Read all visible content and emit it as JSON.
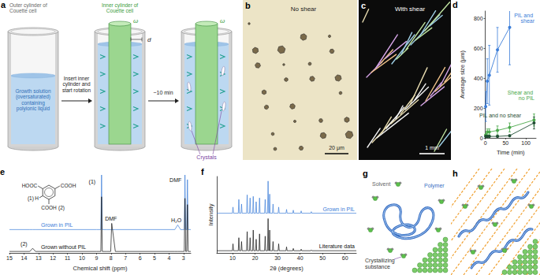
{
  "figure": {
    "a": {
      "letter": "a",
      "outer_cylinder": [
        "Outer cylinder of",
        "Couette cell"
      ],
      "inner_cylinder": [
        "Inner cylinder of",
        "Couette cell"
      ],
      "omega": "ω",
      "gap": "d",
      "step1": [
        "Insert inner",
        "cylinder and",
        "start rotation"
      ],
      "step2": "~10 min",
      "solution": [
        "Growth solution",
        "(oversaturated)",
        "containing",
        "polyionic liquid"
      ],
      "crystals": "Crystals"
    },
    "b": {
      "letter": "b",
      "label": "No shear",
      "scale_bar": "20 μm"
    },
    "c": {
      "letter": "c",
      "label": "With shear",
      "scale_bar": "1 mm"
    },
    "e_structure": {
      "left": "HOOC",
      "right": "COOH",
      "bottom": "COOH",
      "h_label": "H",
      "proton_1": "(1)",
      "proton_2": "(2)"
    },
    "g": {
      "letter": "g",
      "solvent": "Solvent",
      "polymer": "Polymer",
      "substance": [
        "Crystallizing",
        "substance"
      ]
    },
    "h": {
      "letter": "h"
    }
  },
  "chart_data": [
    {
      "type": "line",
      "title": "d",
      "xlabel": "Time (min)",
      "ylabel": "Average size (μm)",
      "xlim": [
        0,
        125
      ],
      "ylim": [
        0,
        850
      ],
      "xticks": [
        0,
        50,
        100
      ],
      "yticks": [
        0,
        200,
        400,
        600,
        800
      ],
      "grid": false,
      "marker": "circle",
      "series": [
        {
          "name": "PIL and shear",
          "color": "#3b7dd8",
          "x": [
            1,
            5,
            10,
            30,
            60
          ],
          "values": [
            210,
            380,
            420,
            590,
            740
          ],
          "errors": [
            100,
            150,
            200,
            150,
            250
          ]
        },
        {
          "name": "Shear and no PIL",
          "color": "#4aa84a",
          "x": [
            1,
            5,
            10,
            30,
            60,
            120
          ],
          "values": [
            20,
            40,
            40,
            50,
            70,
            120
          ],
          "errors": [
            10,
            20,
            20,
            30,
            30,
            40
          ]
        },
        {
          "name": "PIL and no shear",
          "color": "#1f4d33",
          "x": [
            1,
            5,
            10,
            30,
            60,
            120
          ],
          "values": [
            10,
            10,
            10,
            10,
            15,
            100
          ],
          "errors": [
            5,
            5,
            5,
            5,
            5,
            40
          ]
        }
      ]
    },
    {
      "type": "line",
      "title": "e",
      "xlabel": "Chemical shift (ppm)",
      "xlim": [
        15,
        2.5
      ],
      "ylim": [
        0,
        100
      ],
      "xticks": [
        15,
        14,
        13,
        12,
        11,
        10,
        9,
        8,
        7,
        6,
        5,
        4,
        3
      ],
      "tick_labels": "x",
      "grid": false,
      "x": [
        15,
        13.6,
        13.4,
        13.2,
        9.0,
        8.7,
        8.65,
        8.6,
        8.3,
        8.02,
        7.95,
        7.7,
        3.6,
        3.4,
        3.2,
        3.0,
        2.95,
        2.9,
        2.85,
        2.78,
        2.73,
        2.68,
        2.5
      ],
      "series": [
        {
          "name": "Grown in PIL",
          "color": "#3b7dd8",
          "values": [
            30,
            30,
            30,
            30,
            30,
            30,
            100,
            30,
            30,
            30,
            30,
            30,
            30,
            36,
            30,
            30,
            30,
            100,
            30,
            30,
            94,
            30,
            30
          ]
        },
        {
          "name": "Grown without PIL",
          "color": "#111111",
          "values": [
            2,
            2,
            6,
            2,
            2,
            2,
            72,
            2,
            2,
            2,
            38,
            2,
            2,
            2,
            2,
            2,
            2,
            70,
            2,
            2,
            62,
            2,
            2
          ]
        }
      ],
      "annotations": [
        {
          "text": "(1)",
          "x": 9.3,
          "y": 88
        },
        {
          "text": "DMF",
          "x": 8.0,
          "y": 40
        },
        {
          "text": "H₂O",
          "x": 3.5,
          "y": 38
        },
        {
          "text": "DMF",
          "x": 3.55,
          "y": 90
        },
        {
          "text": "(2)",
          "x": 14.0,
          "y": 8
        }
      ]
    },
    {
      "type": "line",
      "title": "f",
      "xlabel": "2θ (degrees)",
      "ylabel": "Intensity",
      "xlim": [
        3,
        65
      ],
      "ylim": [
        0,
        100
      ],
      "xticks": [
        10,
        20,
        30,
        40,
        50,
        60
      ],
      "tick_labels": "x",
      "grid": false,
      "x": [
        3,
        9.95,
        10.2,
        10.45,
        12.55,
        12.8,
        13.05,
        13.75,
        14,
        14.25,
        16.25,
        16.5,
        16.75,
        17.55,
        17.8,
        18.05,
        18.95,
        19.2,
        19.45,
        20.25,
        20.5,
        20.75,
        21.75,
        22,
        22.25,
        24.25,
        24.5,
        24.75,
        25.55,
        25.8,
        26.05,
        26.3,
        26.5,
        26.7,
        27.75,
        28,
        28.25,
        30.25,
        30.5,
        30.75,
        33.75,
        34,
        34.25,
        36.75,
        37,
        37.25,
        40.25,
        40.5,
        40.75,
        44.75,
        45,
        45.25,
        65
      ],
      "series": [
        {
          "name": "Grown in PIL",
          "color": "#3b7dd8",
          "values": [
            52,
            52,
            60,
            52,
            52,
            70,
            52,
            52,
            64,
            52,
            52,
            76,
            52,
            52,
            72,
            52,
            52,
            74,
            52,
            52,
            67,
            52,
            52,
            72,
            52,
            52,
            70,
            52,
            52,
            94,
            52,
            52,
            77,
            52,
            52,
            64,
            52,
            52,
            60,
            52,
            52,
            57,
            52,
            52,
            56,
            52,
            52,
            55,
            52,
            52,
            54,
            52,
            52
          ]
        },
        {
          "name": "Literature data",
          "color": "#111111",
          "values": [
            3,
            3,
            12,
            3,
            3,
            20,
            3,
            3,
            15,
            3,
            3,
            28,
            3,
            3,
            20,
            3,
            3,
            30,
            3,
            3,
            18,
            3,
            3,
            25,
            3,
            3,
            22,
            3,
            3,
            45,
            3,
            3,
            30,
            3,
            3,
            15,
            3,
            3,
            12,
            3,
            3,
            8,
            3,
            3,
            6,
            3,
            3,
            5,
            3,
            3,
            4,
            3,
            3
          ]
        }
      ]
    }
  ]
}
